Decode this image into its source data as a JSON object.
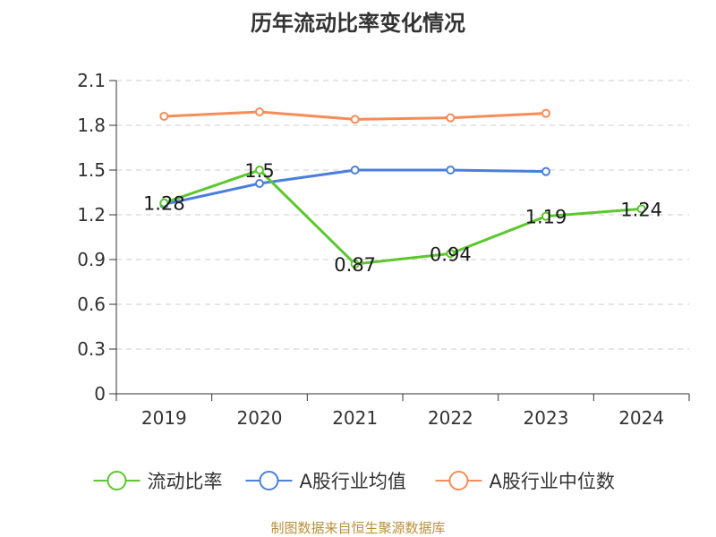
{
  "chart_data": {
    "type": "line",
    "title": "历年流动比率变化情况",
    "categories": [
      "2019",
      "2020",
      "2021",
      "2022",
      "2023",
      "2024"
    ],
    "ylim": [
      0,
      2.1
    ],
    "yticks": [
      "0",
      "0.3",
      "0.6",
      "0.9",
      "1.2",
      "1.5",
      "1.8",
      "2.1"
    ],
    "grid": true,
    "legend_position": "bottom",
    "series": [
      {
        "name": "流动比率",
        "color": "#5cc72e",
        "values": [
          1.28,
          1.5,
          0.87,
          0.94,
          1.19,
          1.24
        ],
        "labels": [
          "1.28",
          "1.5",
          "0.87",
          "0.94",
          "1.19",
          "1.24"
        ]
      },
      {
        "name": "A股行业均值",
        "color": "#4a7fdc",
        "values": [
          1.27,
          1.41,
          1.5,
          1.5,
          1.49,
          null
        ]
      },
      {
        "name": "A股行业中位数",
        "color": "#f78c56",
        "values": [
          1.86,
          1.89,
          1.84,
          1.85,
          1.88,
          null
        ]
      }
    ]
  },
  "footer": "制图数据来自恒生聚源数据库"
}
